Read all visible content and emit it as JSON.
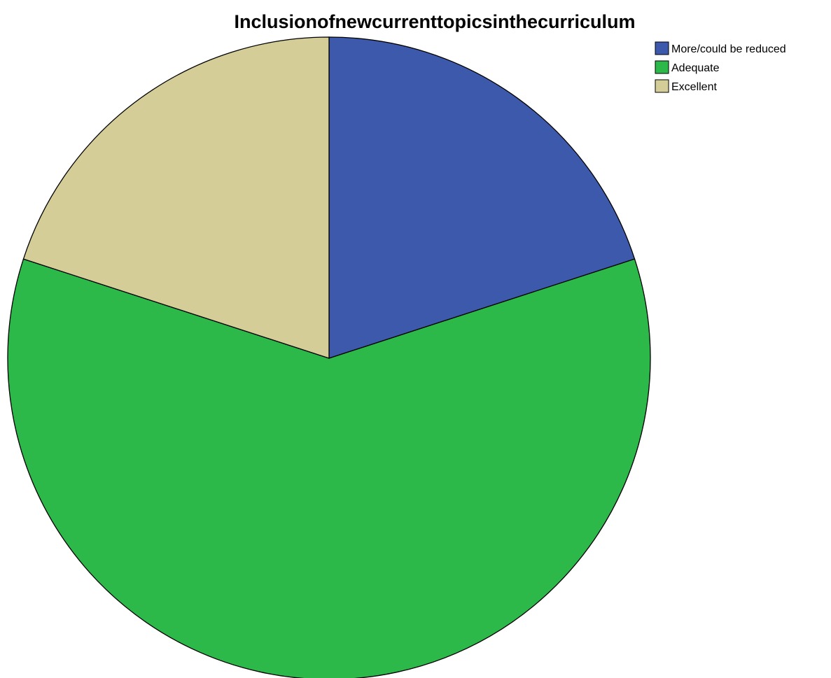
{
  "chart_data": {
    "type": "pie",
    "title": "Inclusionofnewcurrenttopicsinthecurriculum",
    "start_angle": "12 o'clock, clockwise",
    "slices": [
      {
        "label": "More/could be reduced",
        "value": 20,
        "color": "#3d59ab"
      },
      {
        "label": "Adequate",
        "value": 60,
        "color": "#2db84a"
      },
      {
        "label": "Excellent",
        "value": 20,
        "color": "#d4cd98"
      }
    ],
    "legend_position": "top-right"
  }
}
